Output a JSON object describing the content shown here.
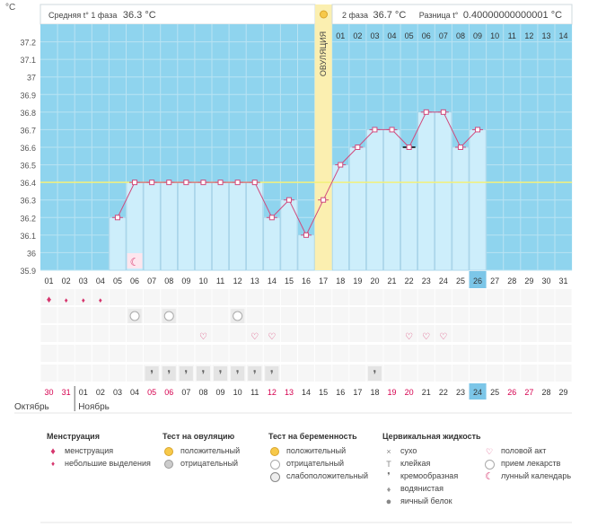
{
  "header": {
    "unit": "°C",
    "phase1_label": "Средняя t° 1 фаза",
    "phase1_value": "36.3 °C",
    "phase2_label": "2 фаза",
    "phase2_value": "36.7 °C",
    "diff_label": "Разница t°",
    "diff_value": "0.40000000000001 °C",
    "ovulation_label": "ОВУЛЯЦИЯ"
  },
  "chart_data": {
    "type": "line",
    "title": "",
    "xlabel": "",
    "ylabel": "°C",
    "ylim": [
      35.9,
      37.3
    ],
    "yticks": [
      "35.9",
      "36",
      "36.1",
      "36.2",
      "36.3",
      "36.4",
      "36.5",
      "36.6",
      "36.7",
      "36.8",
      "36.9",
      "37",
      "37.1",
      "37.2"
    ],
    "days": [
      "01",
      "02",
      "03",
      "04",
      "05",
      "06",
      "07",
      "08",
      "09",
      "10",
      "11",
      "12",
      "13",
      "14",
      "15",
      "16",
      "17",
      "18",
      "19",
      "20",
      "21",
      "22",
      "23",
      "24",
      "25",
      "26",
      "27",
      "28",
      "29",
      "30",
      "31"
    ],
    "highlight_day": "26",
    "phase2_days": [
      "01",
      "02",
      "03",
      "04",
      "05",
      "06",
      "07",
      "08",
      "09",
      "10",
      "11",
      "12",
      "13",
      "14"
    ],
    "ovulation_day_index": 16,
    "coverline": 36.4,
    "temperatures": [
      null,
      null,
      null,
      null,
      36.2,
      36.4,
      36.4,
      36.4,
      36.4,
      36.4,
      36.4,
      36.4,
      36.4,
      36.2,
      36.3,
      36.1,
      36.3,
      36.5,
      36.6,
      36.7,
      36.7,
      36.6,
      36.8,
      36.8,
      36.6,
      36.7,
      null,
      null,
      null,
      null,
      null
    ],
    "special_point_index": 21,
    "dates": [
      "30",
      "31",
      "01",
      "02",
      "03",
      "04",
      "05",
      "06",
      "07",
      "08",
      "09",
      "10",
      "11",
      "12",
      "13",
      "14",
      "15",
      "16",
      "17",
      "18",
      "19",
      "20",
      "21",
      "22",
      "23",
      "24",
      "25",
      "26",
      "27",
      "28",
      "29"
    ],
    "weekend_date_indices": [
      0,
      1,
      6,
      7,
      13,
      14,
      20,
      21,
      27,
      28
    ],
    "highlight_date_index": 25,
    "months": [
      "Октябрь",
      "Ноябрь"
    ]
  },
  "markers": {
    "moon_index": 5,
    "menstruation_indices": [
      0,
      1,
      2,
      3
    ],
    "ovulation_test_indices": [
      5,
      7,
      11
    ],
    "sex_indices": [
      9,
      12,
      13,
      21,
      22,
      23
    ],
    "fluid_indices": [
      6,
      7,
      8,
      9,
      10,
      11,
      12,
      13,
      19
    ]
  },
  "colors": {
    "grid_bg": "#8fd4ee",
    "bar": "#cdeefb",
    "bar_border": "#9cc9e2",
    "line": "#d14a7d",
    "ovulation": "#fbefb0",
    "coverline": "#f3f07a",
    "highlight": "#7cc6e8",
    "weekend": "#d6004f"
  },
  "legend": {
    "menstruation": {
      "title": "Менструация",
      "items": [
        "менструация",
        "небольшие выделения"
      ]
    },
    "ovulation_test": {
      "title": "Тест на овуляцию",
      "items": [
        "положительный",
        "отрицательный"
      ]
    },
    "pregnancy_test": {
      "title": "Тест на беременность",
      "items": [
        "положительный",
        "отрицательный",
        "слабоположительный"
      ]
    },
    "cervical_fluid": {
      "title": "Цервикальная жидкость",
      "items": [
        "сухо",
        "клейкая",
        "кремообразная",
        "водянистая",
        "яичный белок"
      ]
    },
    "other": {
      "items": [
        "половой акт",
        "прием лекарств",
        "лунный календарь"
      ]
    }
  }
}
